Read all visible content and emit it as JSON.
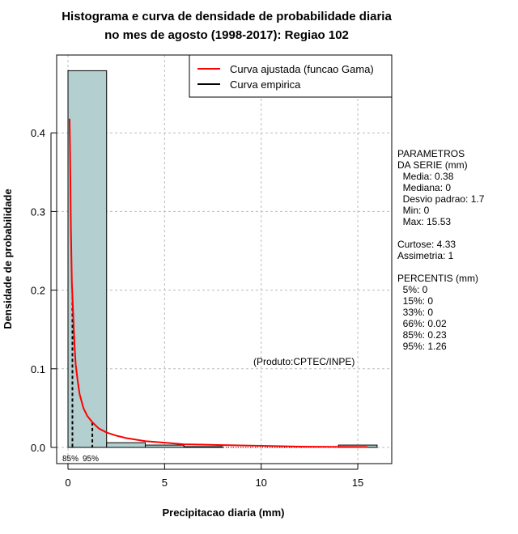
{
  "chart_data": {
    "type": "bar",
    "title_line1": "Histograma e curva de densidade de probabilidade diaria",
    "title_line2": "no mes de agosto (1998-2017): Regiao 102",
    "xlabel": "Precipitacao diaria (mm)",
    "ylabel": "Densidade de probabilidade",
    "xlim": [
      -0.6,
      16.7
    ],
    "ylim": [
      -0.02,
      0.5
    ],
    "xticks": [
      "0",
      "5",
      "10",
      "15"
    ],
    "xtick_values": [
      0,
      5,
      10,
      15
    ],
    "yticks": [
      "0.0",
      "0.1",
      "0.2",
      "0.3",
      "0.4"
    ],
    "ytick_values": [
      0,
      0.1,
      0.2,
      0.3,
      0.4
    ],
    "grid": true,
    "bins": [
      [
        0,
        2,
        0.479
      ],
      [
        2,
        4,
        0.006
      ],
      [
        4,
        6,
        0.003
      ],
      [
        6,
        8,
        0.001
      ],
      [
        8,
        10,
        0
      ],
      [
        10,
        12,
        0
      ],
      [
        12,
        14,
        0
      ],
      [
        14,
        16,
        0.003
      ]
    ],
    "fitted_curve": [
      [
        0.08,
        0.418
      ],
      [
        0.1,
        0.39
      ],
      [
        0.12,
        0.35
      ],
      [
        0.15,
        0.28
      ],
      [
        0.2,
        0.21
      ],
      [
        0.25,
        0.18
      ],
      [
        0.3,
        0.15
      ],
      [
        0.35,
        0.125
      ],
      [
        0.4,
        0.105
      ],
      [
        0.5,
        0.085
      ],
      [
        0.6,
        0.068
      ],
      [
        0.8,
        0.05
      ],
      [
        1.0,
        0.04
      ],
      [
        1.26,
        0.032
      ],
      [
        1.6,
        0.024
      ],
      [
        2.0,
        0.019
      ],
      [
        2.5,
        0.015
      ],
      [
        3,
        0.012
      ],
      [
        4,
        0.008
      ],
      [
        5,
        0.006
      ],
      [
        6,
        0.004
      ],
      [
        8,
        0.003
      ],
      [
        10,
        0.002
      ],
      [
        12,
        0.001
      ],
      [
        15.5,
        0.0005
      ]
    ],
    "percentile_lines": [
      {
        "label": "85%",
        "x": 0.23
      },
      {
        "label": "95%",
        "x": 1.26
      }
    ],
    "legend": {
      "position": "top-right",
      "entries": [
        {
          "label": "Curva ajustada (funcao Gama)",
          "color": "#ff0000"
        },
        {
          "label": "Curva empirica",
          "color": "#000000"
        }
      ]
    },
    "annotation": "(Produto:CPTEC/INPE)",
    "bar_color": "#b4cfd0"
  },
  "params": {
    "header1": "PARAMETROS",
    "header2": "DA SERIE (mm)",
    "media": "  Media: 0.38",
    "mediana": "  Mediana: 0",
    "desvio": "  Desvio padrao: 1.7",
    "min": "  Min: 0",
    "max": "  Max: 15.53",
    "curtose": "Curtose: 4.33",
    "assimetria": "Assimetria: 1",
    "percentis_header": "PERCENTIS (mm)",
    "p5": "  5%: 0",
    "p15": "  15%: 0",
    "p33": "  33%: 0",
    "p66": "  66%: 0.02",
    "p85": "  85%: 0.23",
    "p95": "  95%: 1.26"
  }
}
